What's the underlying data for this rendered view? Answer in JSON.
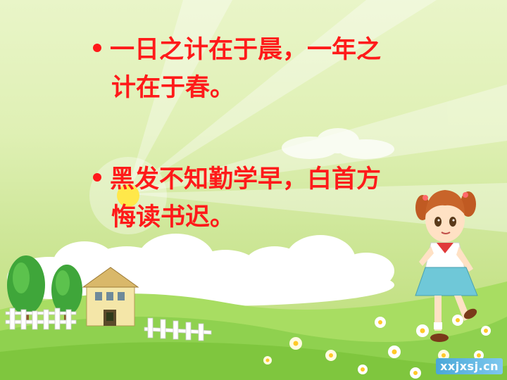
{
  "slide": {
    "bullets": [
      {
        "lines": [
          "一日之计在于晨，一年之",
          "计在于春。"
        ]
      },
      {
        "lines": [
          "黑发不知勤学早，白首方",
          "悔读书迟。"
        ]
      }
    ],
    "watermark": "xxjxsj.cn"
  },
  "colors": {
    "text": "#ff1a1a",
    "sky": "#e9f5c8",
    "grass": "#8fd14f"
  },
  "icons": [
    "sun-icon",
    "cloud-icon",
    "tree-icon",
    "house-icon",
    "fence-icon",
    "flower-icon",
    "girl-illustration"
  ]
}
